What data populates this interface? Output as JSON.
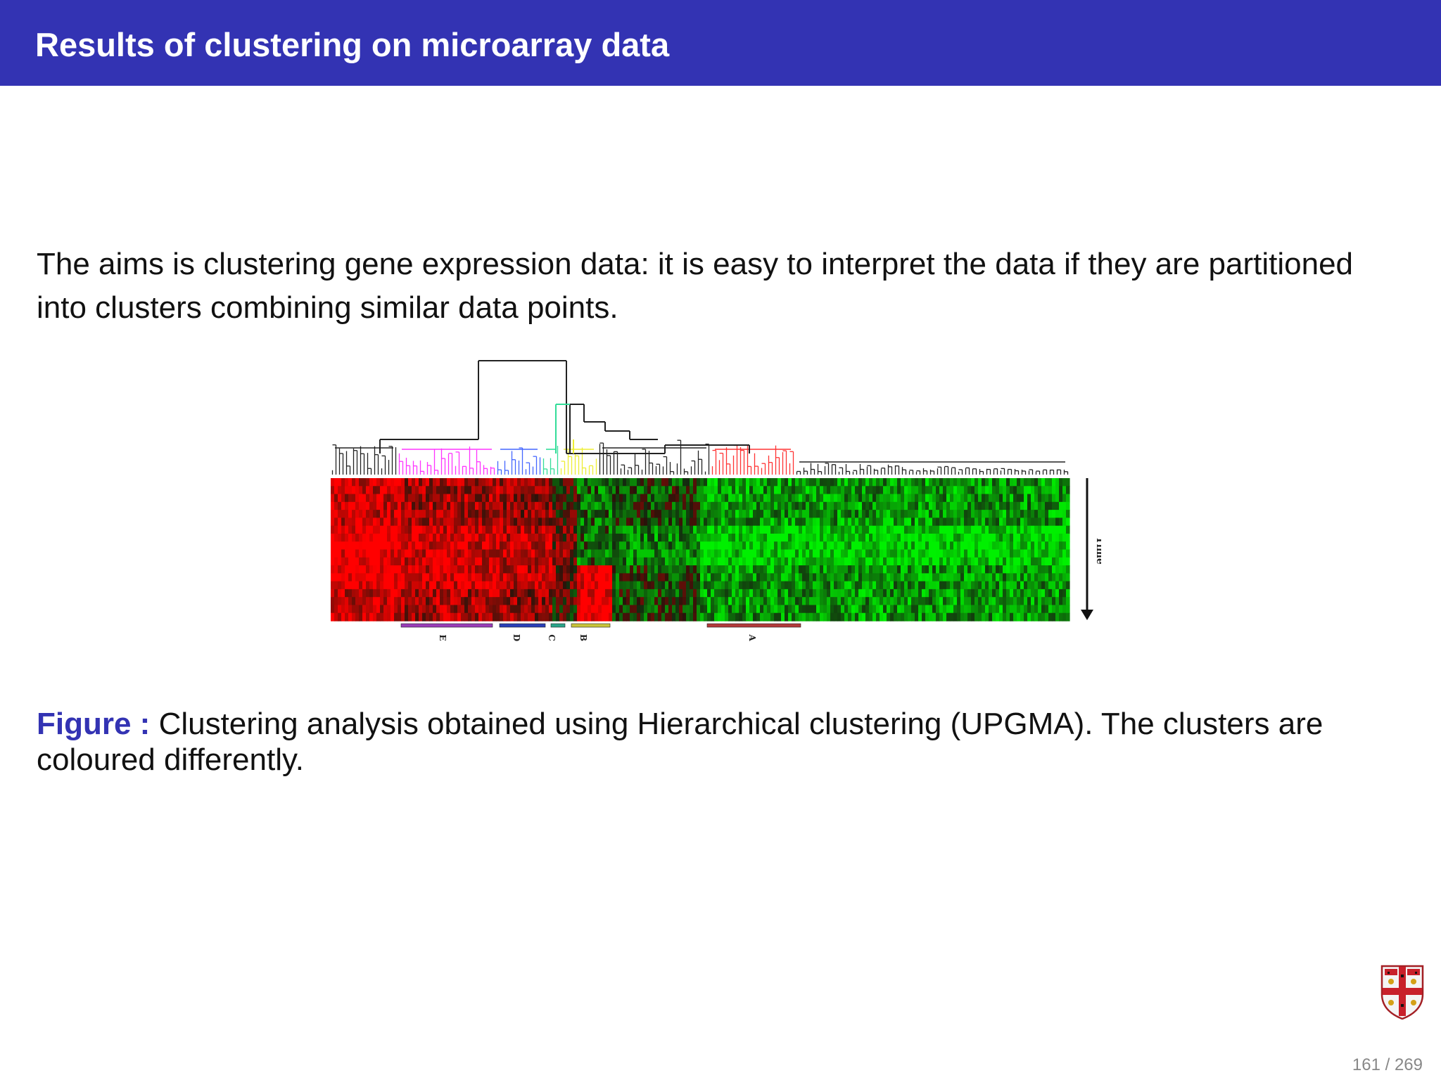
{
  "slide": {
    "title": "Results of clustering on microarray data",
    "intro": "The aims is clustering gene expression data: it is easy to interpret the data if they are partitioned into clusters combining similar data points.",
    "caption_label": "Figure :",
    "caption_text": "Clustering analysis obtained using Hierarchical clustering (UPGMA). The clusters are coloured differently.",
    "page_current": "161",
    "page_total": "269",
    "page_sep": "/"
  },
  "figure": {
    "time_label": "Time",
    "cluster_labels": [
      "E",
      "D",
      "C",
      "B",
      "A"
    ],
    "cluster_colors": [
      "#9a3db8",
      "#2a3fb8",
      "#2aa58a",
      "#c9c43a",
      "#b33a3a"
    ],
    "dendrogram_colors": {
      "E": "#ff33ff",
      "D": "#4466ff",
      "C": "#33dd99",
      "B": "#eeee33",
      "A": "#ff3333",
      "other": "#222222"
    }
  },
  "colors": {
    "header": "#3333b3",
    "accent": "#3333b3",
    "heat_red": "#ff1a1a",
    "heat_green": "#22ee22"
  },
  "icons": {
    "crest": "university-crest-icon"
  }
}
